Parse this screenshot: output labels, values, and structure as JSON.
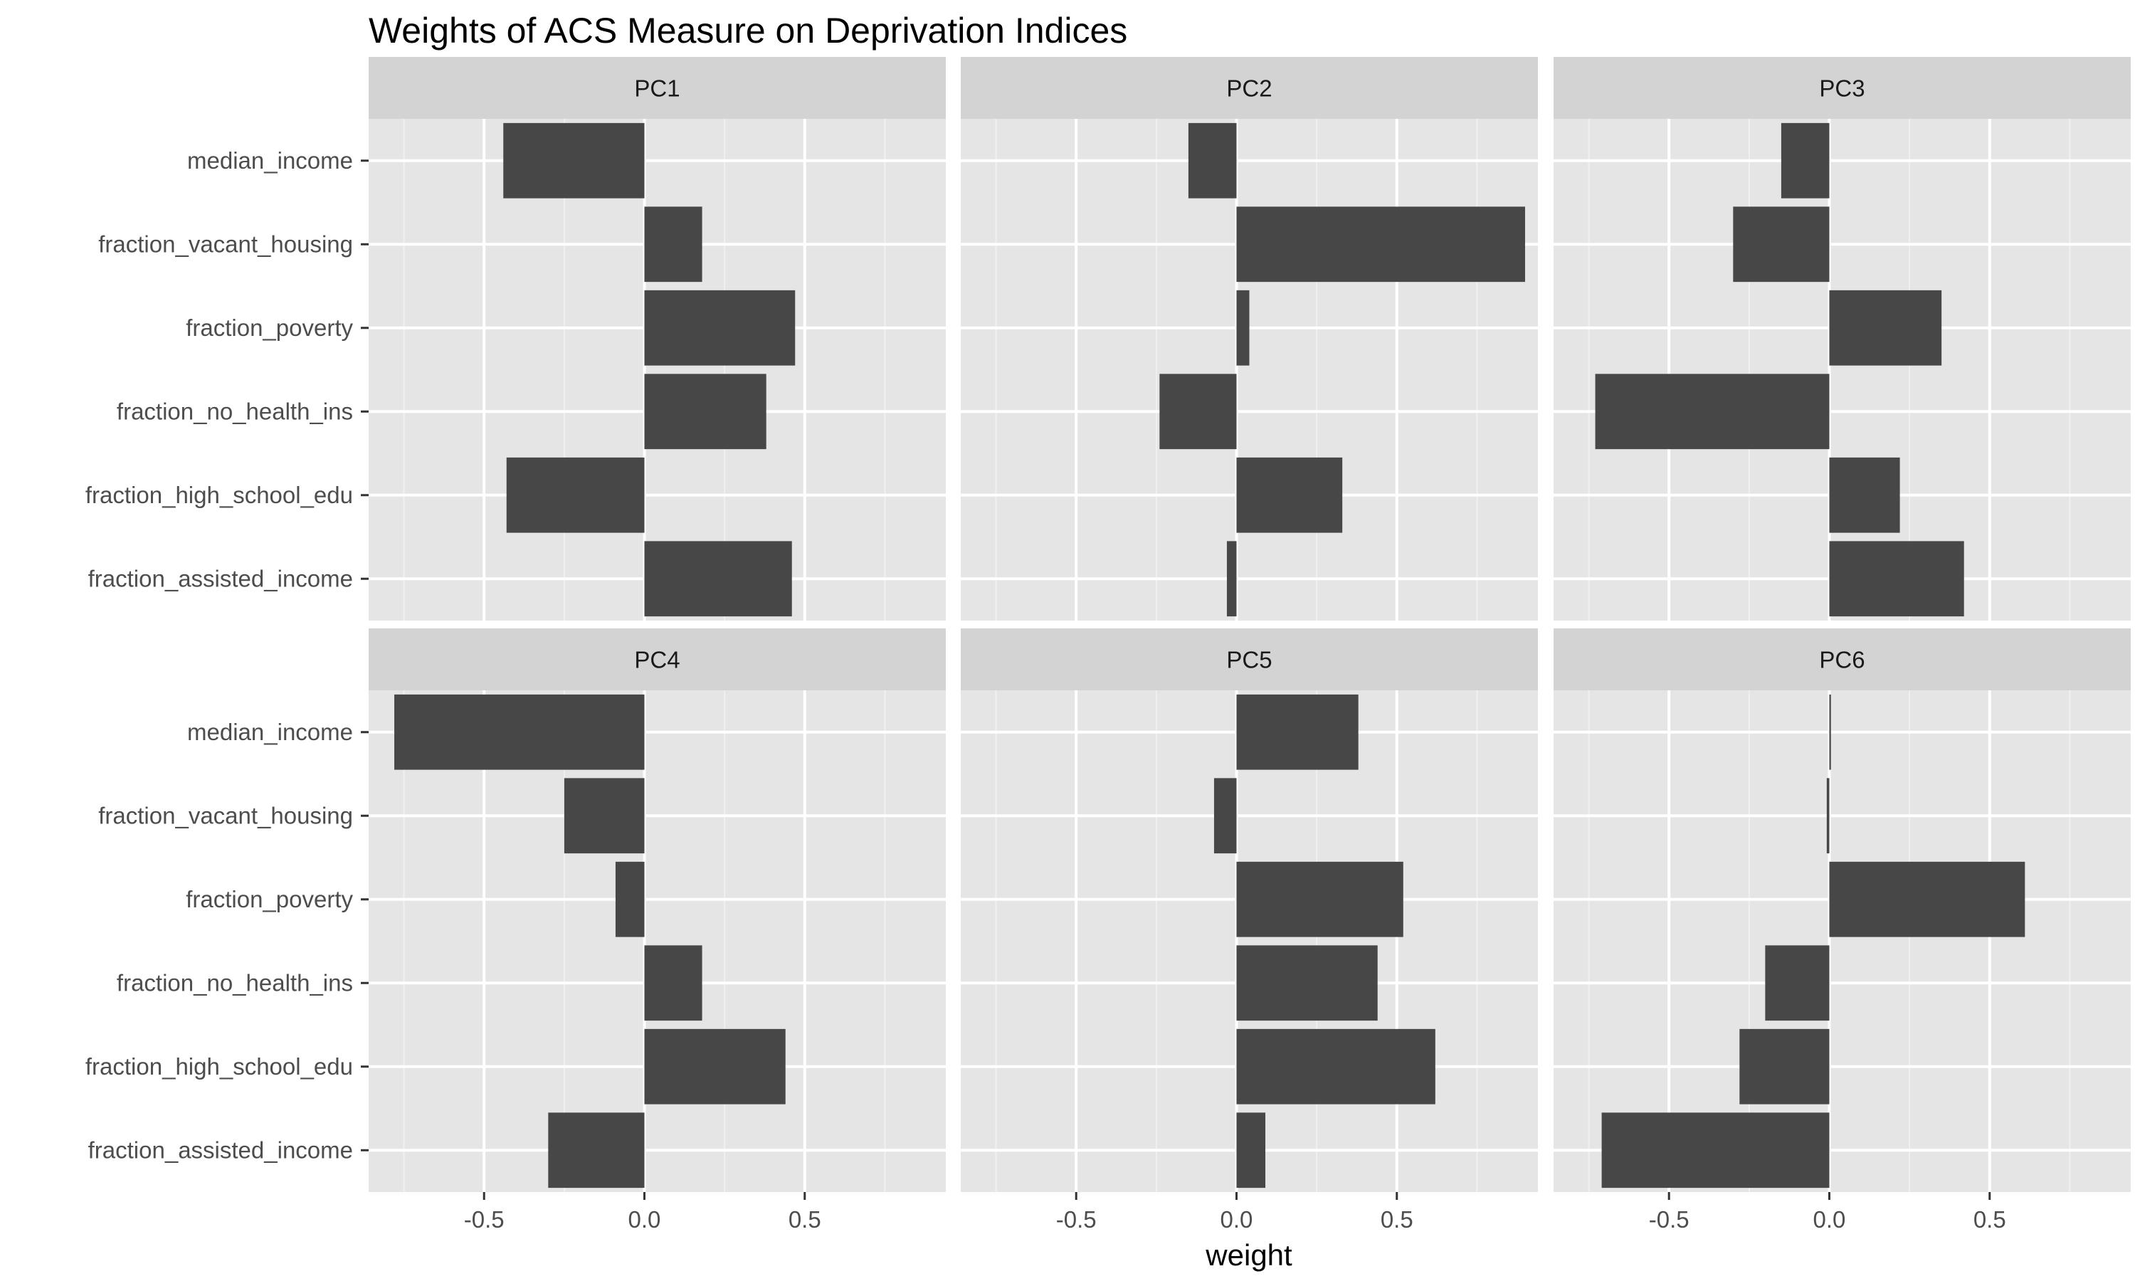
{
  "chart_data": {
    "type": "bar",
    "orientation": "horizontal",
    "title": "Weights of ACS Measure on Deprivation Indices",
    "xlabel": "weight",
    "ylabel": "",
    "xlim": [
      -0.86,
      0.94
    ],
    "xticks": [
      -0.5,
      0.0,
      0.5
    ],
    "xtick_labels": [
      "-0.5",
      "0.0",
      "0.5"
    ],
    "grid": true,
    "legend": "none",
    "facet_layout": "2 rows x 3 columns",
    "categories": [
      "median_income",
      "fraction_vacant_housing",
      "fraction_poverty",
      "fraction_no_health_ins",
      "fraction_high_school_edu",
      "fraction_assisted_income"
    ],
    "series": [
      {
        "name": "PC1",
        "values": [
          -0.44,
          0.18,
          0.47,
          0.38,
          -0.43,
          0.46
        ]
      },
      {
        "name": "PC2",
        "values": [
          -0.15,
          0.9,
          0.04,
          -0.24,
          0.33,
          -0.03
        ]
      },
      {
        "name": "PC3",
        "values": [
          -0.15,
          -0.3,
          0.35,
          -0.73,
          0.22,
          0.42
        ]
      },
      {
        "name": "PC4",
        "values": [
          -0.78,
          -0.25,
          -0.09,
          0.18,
          0.44,
          -0.3
        ]
      },
      {
        "name": "PC5",
        "values": [
          0.38,
          -0.07,
          0.52,
          0.44,
          0.62,
          0.09
        ]
      },
      {
        "name": "PC6",
        "values": [
          0.005,
          -0.008,
          0.61,
          -0.2,
          -0.28,
          -0.71
        ]
      }
    ],
    "colors": {
      "bar": "#474747",
      "panel_background": "#e5e5e5",
      "strip_background": "#d3d3d3",
      "grid_major": "#ffffff",
      "grid_minor": "#f0f0f0"
    }
  }
}
